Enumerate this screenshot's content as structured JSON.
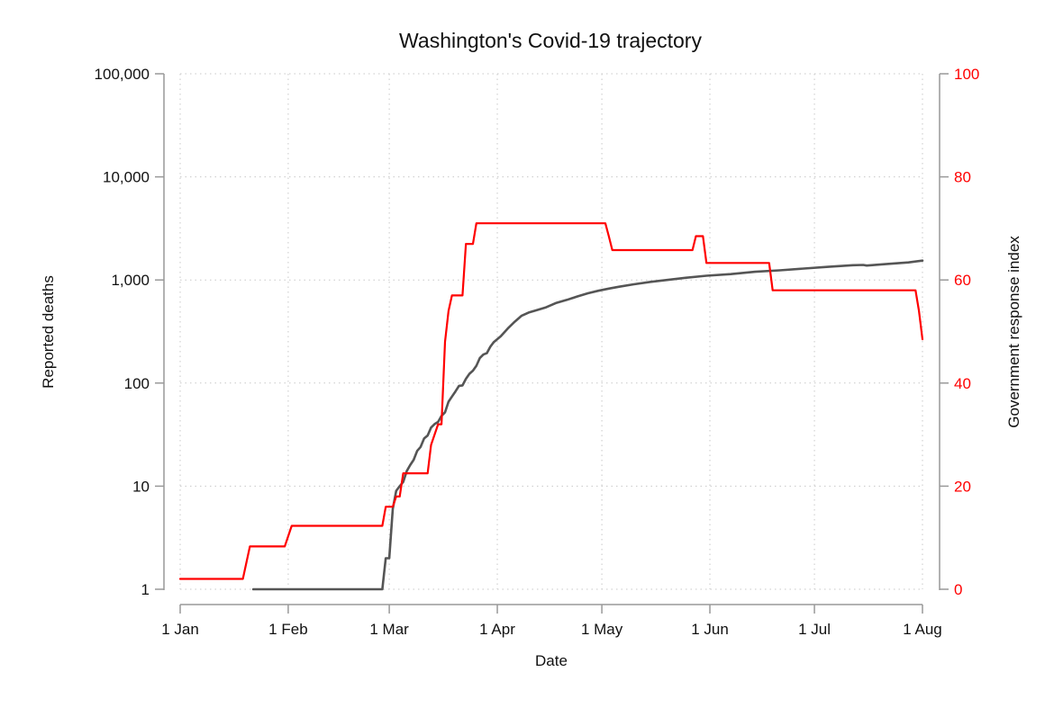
{
  "chart_data": {
    "type": "line",
    "title": "Washington's Covid-19 trajectory",
    "xlabel": "Date",
    "ylabel": "Reported deaths",
    "y2label": "Government response index",
    "x_ticks": [
      {
        "label": "1 Jan",
        "date": "2020-01-01"
      },
      {
        "label": "1 Feb",
        "date": "2020-02-01"
      },
      {
        "label": "1 Mar",
        "date": "2020-03-01"
      },
      {
        "label": "1 Apr",
        "date": "2020-04-01"
      },
      {
        "label": "1 May",
        "date": "2020-05-01"
      },
      {
        "label": "1 Jun",
        "date": "2020-06-01"
      },
      {
        "label": "1 Jul",
        "date": "2020-07-01"
      },
      {
        "label": "1 Aug",
        "date": "2020-08-01"
      }
    ],
    "xlim": [
      "2020-01-01",
      "2020-08-01"
    ],
    "y_scale": "log",
    "ylim": [
      1,
      100000
    ],
    "y_ticks": [
      {
        "value": 1,
        "label": "1"
      },
      {
        "value": 10,
        "label": "10"
      },
      {
        "value": 100,
        "label": "100"
      },
      {
        "value": 1000,
        "label": "1,000"
      },
      {
        "value": 10000,
        "label": "10,000"
      },
      {
        "value": 100000,
        "label": "100,000"
      }
    ],
    "y2lim": [
      0,
      100
    ],
    "y2_ticks": [
      0,
      20,
      40,
      60,
      80,
      100
    ],
    "grid": true,
    "series": [
      {
        "axis": "left",
        "color": "#555555",
        "step": false,
        "points": [
          [
            "2020-01-22",
            1
          ],
          [
            "2020-02-28",
            1
          ],
          [
            "2020-02-29",
            2
          ],
          [
            "2020-03-01",
            2
          ],
          [
            "2020-03-02",
            6
          ],
          [
            "2020-03-03",
            9
          ],
          [
            "2020-03-04",
            10
          ],
          [
            "2020-03-05",
            11
          ],
          [
            "2020-03-06",
            14
          ],
          [
            "2020-03-07",
            16
          ],
          [
            "2020-03-08",
            18
          ],
          [
            "2020-03-09",
            22
          ],
          [
            "2020-03-10",
            24
          ],
          [
            "2020-03-11",
            29
          ],
          [
            "2020-03-12",
            31
          ],
          [
            "2020-03-13",
            37
          ],
          [
            "2020-03-14",
            40
          ],
          [
            "2020-03-15",
            42
          ],
          [
            "2020-03-16",
            48
          ],
          [
            "2020-03-17",
            52
          ],
          [
            "2020-03-18",
            66
          ],
          [
            "2020-03-19",
            74
          ],
          [
            "2020-03-20",
            83
          ],
          [
            "2020-03-21",
            94
          ],
          [
            "2020-03-22",
            95
          ],
          [
            "2020-03-23",
            110
          ],
          [
            "2020-03-24",
            123
          ],
          [
            "2020-03-25",
            132
          ],
          [
            "2020-03-26",
            147
          ],
          [
            "2020-03-27",
            175
          ],
          [
            "2020-03-28",
            189
          ],
          [
            "2020-03-29",
            195
          ],
          [
            "2020-03-30",
            225
          ],
          [
            "2020-03-31",
            250
          ],
          [
            "2020-04-02",
            284
          ],
          [
            "2020-04-04",
            338
          ],
          [
            "2020-04-06",
            394
          ],
          [
            "2020-04-08",
            450
          ],
          [
            "2020-04-10",
            483
          ],
          [
            "2020-04-12",
            506
          ],
          [
            "2020-04-15",
            543
          ],
          [
            "2020-04-18",
            600
          ],
          [
            "2020-04-21",
            641
          ],
          [
            "2020-04-24",
            692
          ],
          [
            "2020-04-27",
            743
          ],
          [
            "2020-04-30",
            786
          ],
          [
            "2020-05-03",
            825
          ],
          [
            "2020-05-06",
            860
          ],
          [
            "2020-05-10",
            906
          ],
          [
            "2020-05-15",
            958
          ],
          [
            "2020-05-20",
            1002
          ],
          [
            "2020-05-25",
            1050
          ],
          [
            "2020-05-31",
            1100
          ],
          [
            "2020-06-07",
            1140
          ],
          [
            "2020-06-14",
            1200
          ],
          [
            "2020-06-21",
            1240
          ],
          [
            "2020-06-28",
            1290
          ],
          [
            "2020-07-05",
            1340
          ],
          [
            "2020-07-12",
            1390
          ],
          [
            "2020-07-15",
            1400
          ],
          [
            "2020-07-16",
            1380
          ],
          [
            "2020-07-21",
            1420
          ],
          [
            "2020-07-28",
            1480
          ],
          [
            "2020-08-01",
            1540
          ]
        ]
      },
      {
        "axis": "right",
        "color": "#ff0000",
        "step": true,
        "points": [
          [
            "2020-01-01",
            2
          ],
          [
            "2020-01-19",
            2
          ],
          [
            "2020-01-21",
            8.3
          ],
          [
            "2020-01-31",
            8.3
          ],
          [
            "2020-02-02",
            12.3
          ],
          [
            "2020-02-28",
            12.3
          ],
          [
            "2020-02-29",
            16
          ],
          [
            "2020-03-02",
            16
          ],
          [
            "2020-03-03",
            18
          ],
          [
            "2020-03-04",
            18
          ],
          [
            "2020-03-05",
            22.5
          ],
          [
            "2020-03-12",
            22.5
          ],
          [
            "2020-03-13",
            28
          ],
          [
            "2020-03-14",
            30
          ],
          [
            "2020-03-15",
            32
          ],
          [
            "2020-03-16",
            32
          ],
          [
            "2020-03-17",
            48
          ],
          [
            "2020-03-18",
            54
          ],
          [
            "2020-03-19",
            57
          ],
          [
            "2020-03-22",
            57
          ],
          [
            "2020-03-23",
            67
          ],
          [
            "2020-03-25",
            67
          ],
          [
            "2020-03-26",
            71
          ],
          [
            "2020-05-02",
            71
          ],
          [
            "2020-05-03",
            68.5
          ],
          [
            "2020-05-04",
            65.8
          ],
          [
            "2020-05-27",
            65.8
          ],
          [
            "2020-05-28",
            68.5
          ],
          [
            "2020-05-30",
            68.5
          ],
          [
            "2020-05-31",
            63.3
          ],
          [
            "2020-06-18",
            63.3
          ],
          [
            "2020-06-19",
            58
          ],
          [
            "2020-07-30",
            58
          ],
          [
            "2020-07-31",
            54
          ],
          [
            "2020-08-01",
            48.5
          ]
        ]
      }
    ]
  },
  "colors": {
    "left_axis": "#111111",
    "right_axis": "#ff0000",
    "deaths_line": "#555555",
    "response_line": "#ff0000"
  }
}
